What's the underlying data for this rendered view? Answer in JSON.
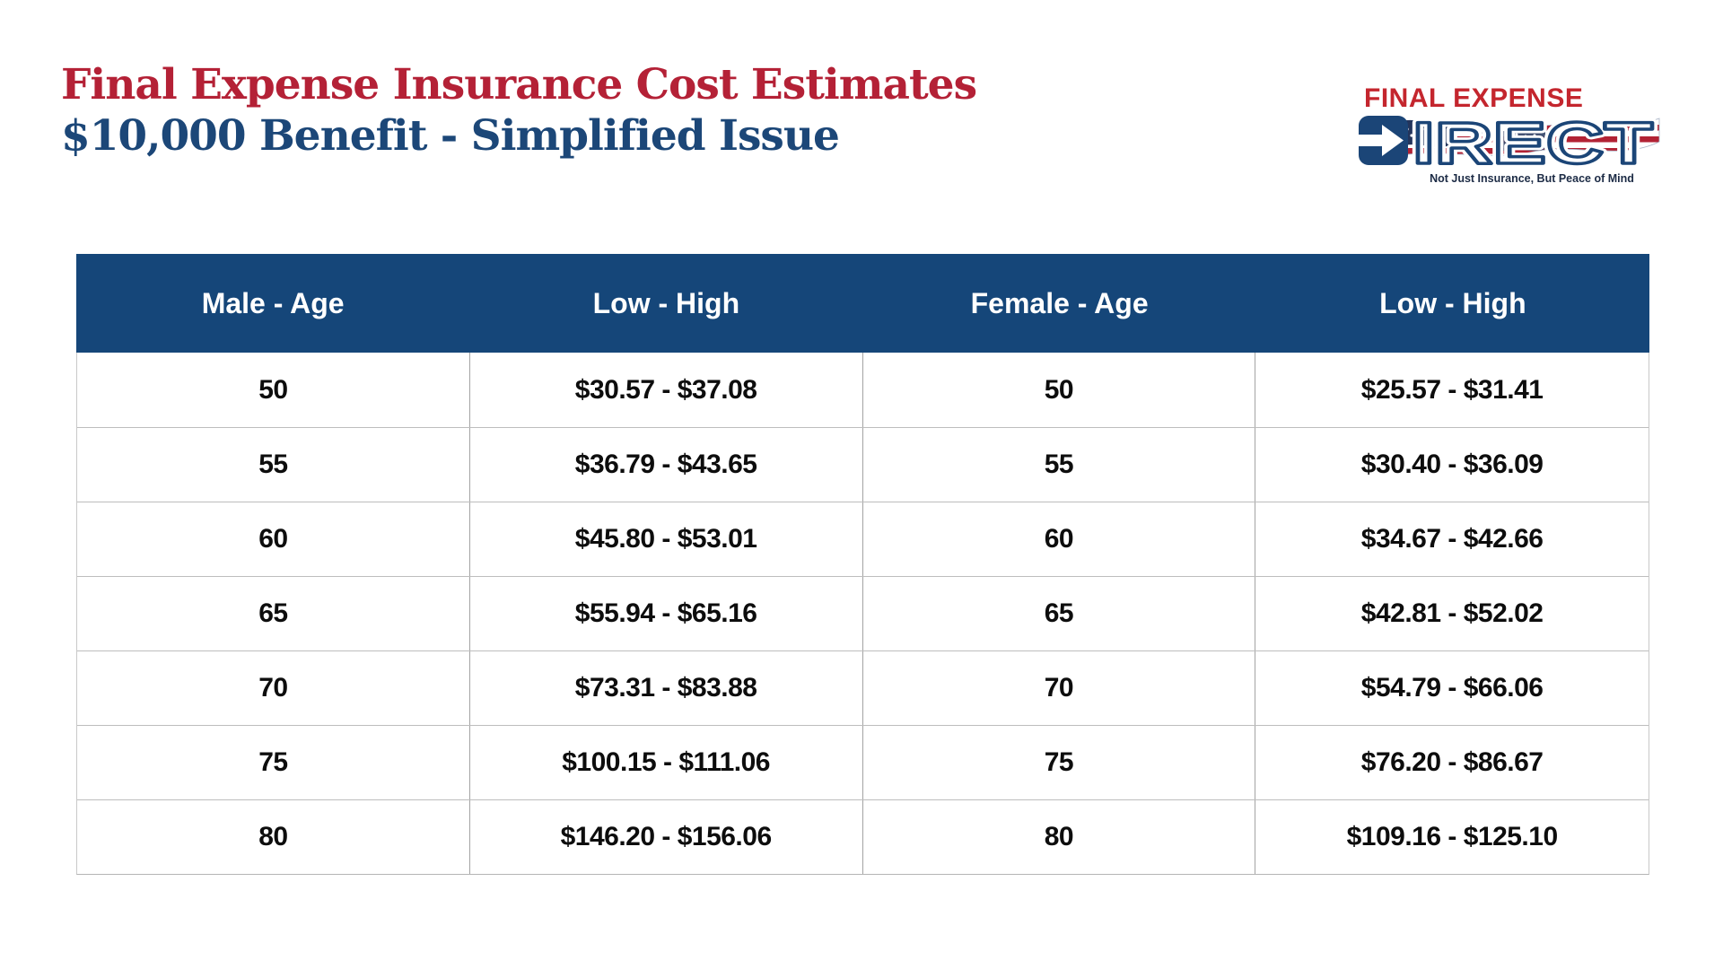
{
  "header": {
    "title_line1": "Final Expense Insurance Cost Estimates",
    "title_line2": "$10,000 Benefit - Simplified Issue"
  },
  "logo": {
    "brand_top": "FINAL EXPENSE",
    "brand_main_first_letter": "D",
    "brand_main_rest": "IRECT",
    "tagline": "Not Just Insurance, But Peace of Mind"
  },
  "table": {
    "headers": [
      "Male - Age",
      "Low - High",
      "Female - Age",
      "Low - High"
    ],
    "rows": [
      [
        "50",
        "$30.57 - $37.08",
        "50",
        "$25.57 - $31.41"
      ],
      [
        "55",
        "$36.79 - $43.65",
        "55",
        "$30.40 - $36.09"
      ],
      [
        "60",
        "$45.80 - $53.01",
        "60",
        "$34.67 - $42.66"
      ],
      [
        "65",
        "$55.94 - $65.16",
        "65",
        "$42.81 - $52.02"
      ],
      [
        "70",
        "$73.31 - $83.88",
        "70",
        "$54.79 - $66.06"
      ],
      [
        "75",
        "$100.15 - $111.06",
        "75",
        "$76.20 - $86.67"
      ],
      [
        "80",
        "$146.20 - $156.06",
        "80",
        "$109.16 - $125.10"
      ]
    ]
  },
  "chart_data": {
    "type": "table",
    "title": "Final Expense Insurance Cost Estimates",
    "subtitle": "$10,000 Benefit - Simplified Issue",
    "columns": [
      "Male - Age",
      "Low - High",
      "Female - Age",
      "Low - High"
    ],
    "ages": [
      50,
      55,
      60,
      65,
      70,
      75,
      80
    ],
    "male_low": [
      30.57,
      36.79,
      45.8,
      55.94,
      73.31,
      100.15,
      146.2
    ],
    "male_high": [
      37.08,
      43.65,
      53.01,
      65.16,
      83.88,
      111.06,
      156.06
    ],
    "female_low": [
      25.57,
      30.4,
      34.67,
      42.81,
      54.79,
      76.2,
      109.16
    ],
    "female_high": [
      31.41,
      36.09,
      42.66,
      52.02,
      66.06,
      86.67,
      125.1
    ]
  },
  "colors": {
    "title_red": "#b42136",
    "title_blue": "#1c4778",
    "table_header_navy": "#154679",
    "logo_red": "#c4262e",
    "logo_navy": "#1b4577",
    "flag_red": "#b22234",
    "cell_text": "#0d0d0d"
  }
}
